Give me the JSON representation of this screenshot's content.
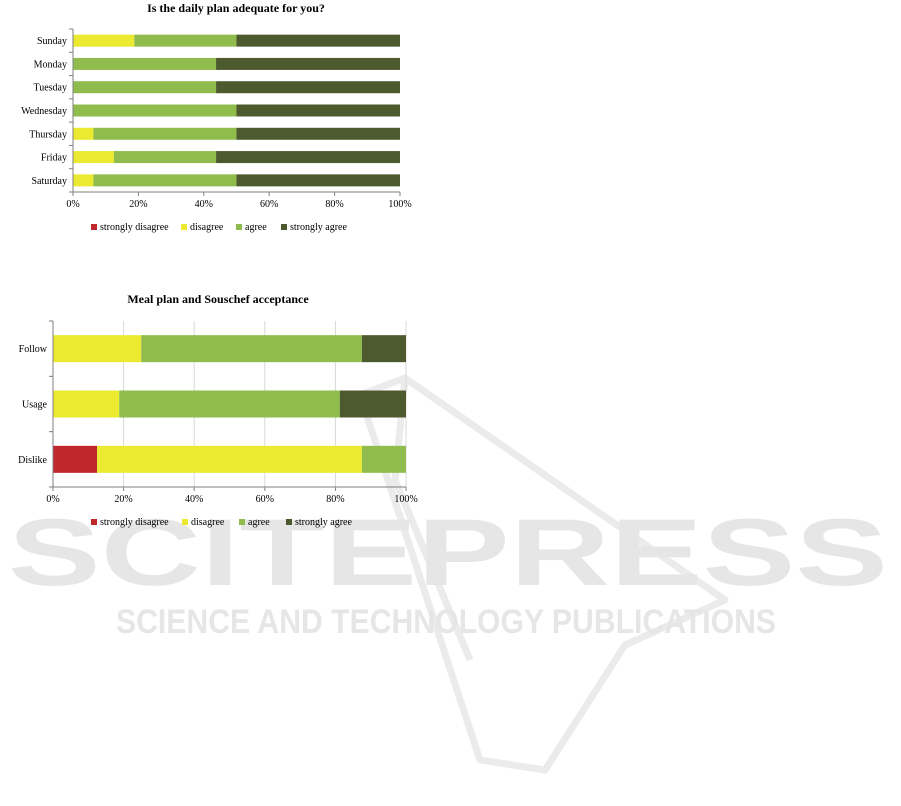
{
  "colors": {
    "strongly disagree": "#c0272d",
    "disagree": "#ebea30",
    "agree": "#8fbc4d",
    "strongly agree": "#4c5a2e"
  },
  "watermark": {
    "line1": "SCITEPRESS",
    "line2": "SCIENCE AND TECHNOLOGY PUBLICATIONS",
    "color": "#e7e7e7"
  },
  "chart_data": [
    {
      "type": "bar",
      "orientation": "horizontal",
      "stacked": true,
      "percent": true,
      "title": "Is the daily plan adequate for you?",
      "categories": [
        "Sunday",
        "Monday",
        "Tuesday",
        "Wednesday",
        "Thursday",
        "Friday",
        "Saturday"
      ],
      "series": [
        {
          "name": "strongly disagree",
          "values": [
            0,
            0,
            0,
            0,
            0,
            0,
            0
          ]
        },
        {
          "name": "disagree",
          "values": [
            18.75,
            0,
            0,
            0,
            6.25,
            12.5,
            6.25
          ]
        },
        {
          "name": "agree",
          "values": [
            31.25,
            43.75,
            43.75,
            50,
            43.75,
            31.25,
            43.75
          ]
        },
        {
          "name": "strongly agree",
          "values": [
            50,
            56.25,
            56.25,
            50,
            50,
            56.25,
            50
          ]
        }
      ],
      "xlim": [
        0,
        100
      ],
      "xticks": [
        "0%",
        "20%",
        "40%",
        "60%",
        "80%",
        "100%"
      ],
      "legend": "bottom",
      "grid": false
    },
    {
      "type": "bar",
      "orientation": "horizontal",
      "stacked": true,
      "percent": true,
      "title": "Meal plan and Souschef acceptance",
      "categories": [
        "Follow",
        "Usage",
        "Dislike"
      ],
      "series": [
        {
          "name": "strongly disagree",
          "values": [
            0,
            0,
            12.5
          ]
        },
        {
          "name": "disagree",
          "values": [
            25,
            18.75,
            75
          ]
        },
        {
          "name": "agree",
          "values": [
            62.5,
            62.5,
            12.5
          ]
        },
        {
          "name": "strongly agree",
          "values": [
            12.5,
            18.75,
            0
          ]
        }
      ],
      "xlim": [
        0,
        100
      ],
      "xticks": [
        "0%",
        "20%",
        "40%",
        "60%",
        "80%",
        "100%"
      ],
      "legend": "bottom",
      "grid": true
    }
  ]
}
